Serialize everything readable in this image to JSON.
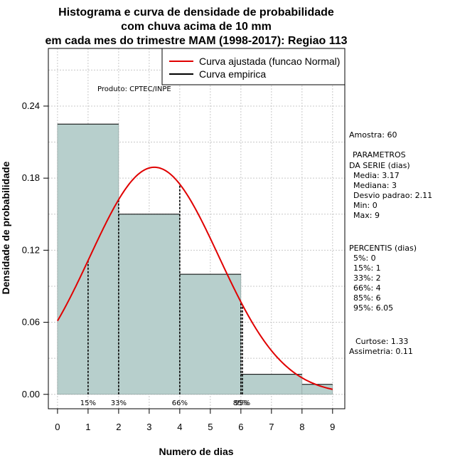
{
  "chart_data": {
    "type": "bar",
    "title": [
      "Histograma e curva de densidade de probabilidade",
      "com chuva acima de 10 mm",
      "em cada mes do trimestre MAM (1998-2017): Regiao 113"
    ],
    "xlabel": "Numero de dias",
    "ylabel": "Densidade de probabilidade",
    "xlim": [
      -0.3,
      9.4
    ],
    "ylim": [
      -0.012,
      0.288
    ],
    "x_ticks": [
      0,
      1,
      2,
      3,
      4,
      5,
      6,
      7,
      8,
      9
    ],
    "y_ticks": [
      0.0,
      0.06,
      0.12,
      0.18,
      0.24
    ],
    "y_tick_labels": [
      "0.00",
      "0.06",
      "0.12",
      "0.18",
      "0.24"
    ],
    "bins": [
      {
        "from": 0,
        "to": 2,
        "density": 0.225
      },
      {
        "from": 2,
        "to": 4,
        "density": 0.15
      },
      {
        "from": 4,
        "to": 6,
        "density": 0.1
      },
      {
        "from": 6,
        "to": 8,
        "density": 0.0167
      },
      {
        "from": 8,
        "to": 9,
        "density": 0.0083
      }
    ],
    "normal_fit": {
      "mean": 3.17,
      "sd": 2.11,
      "x_range": [
        0,
        9
      ]
    },
    "percentile_lines": [
      {
        "label": "15%",
        "x": 1
      },
      {
        "label": "33%",
        "x": 2
      },
      {
        "label": "66%",
        "x": 4
      },
      {
        "label": "85%",
        "x": 6
      },
      {
        "label": "95%",
        "x": 6.05
      }
    ],
    "legend": {
      "position": "top-right",
      "entries": [
        {
          "label": "Curva ajustada (funcao Normal)",
          "color": "#e00000"
        },
        {
          "label": "Curva empirica",
          "color": "#000000"
        }
      ]
    },
    "annotation": "Produto: CPTEC/INPE",
    "bar_color": "#b7cfcc",
    "grid": true
  },
  "side_panel": {
    "sample": "Amostra: 60",
    "params_title_1": "PARAMETROS",
    "params_title_2": "DA SERIE (dias)",
    "media": "Media: 3.17",
    "mediana": "Mediana: 3",
    "desvio": "Desvio padrao: 2.11",
    "min": "Min: 0",
    "max": "Max: 9",
    "percentis_title": "PERCENTIS (dias)",
    "p5": "5%: 0",
    "p15": "15%: 1",
    "p33": "33%: 2",
    "p66": "66%: 4",
    "p85": "85%: 6",
    "p95": "95%: 6.05",
    "curtose": "Curtose: 1.33",
    "assimetria": "Assimetria: 0.11"
  }
}
